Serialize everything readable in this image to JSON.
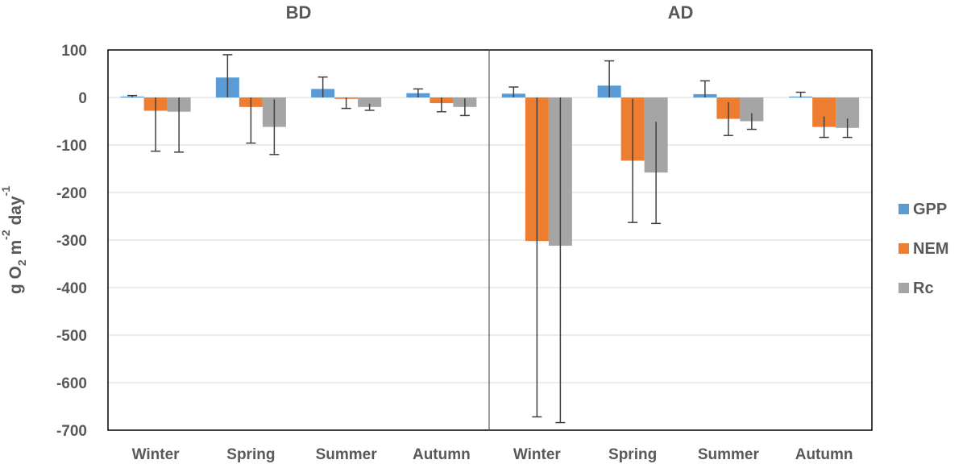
{
  "chart_data": {
    "type": "bar",
    "ylabel_parts": [
      "g O",
      "2",
      " m",
      "-2",
      " day",
      "-1"
    ],
    "ylim": [
      -700,
      100
    ],
    "yticks": [
      100,
      0,
      -100,
      -200,
      -300,
      -400,
      -500,
      -600,
      -700
    ],
    "ytick_labels": [
      "100",
      "0",
      "-100",
      "-200",
      "-300",
      "-400",
      "-500",
      "-600",
      "-700"
    ],
    "grid": true,
    "legend_position": "right",
    "series_names": [
      "GPP",
      "NEM",
      "Rc"
    ],
    "colors": {
      "GPP": "#5b9bd5",
      "NEM": "#ed7d31",
      "Rc": "#a5a5a5",
      "error_bar": "#404040",
      "grid": "#d9d9d9",
      "axis": "#595959"
    },
    "panels": [
      {
        "title": "BD",
        "categories": [
          "Winter",
          "Spring",
          "Summer",
          "Autumn"
        ],
        "series": [
          {
            "name": "GPP",
            "values": [
              2,
              42,
              18,
              9
            ],
            "errors": [
              2,
              48,
              25,
              9
            ]
          },
          {
            "name": "NEM",
            "values": [
              -28,
              -20,
              -3,
              -12
            ],
            "errors": [
              85,
              76,
              20,
              18
            ]
          },
          {
            "name": "Rc",
            "values": [
              -30,
              -62,
              -20,
              -20
            ],
            "errors": [
              85,
              58,
              7,
              18
            ]
          }
        ]
      },
      {
        "title": "AD",
        "categories": [
          "Winter",
          "Spring",
          "Summer",
          "Autumn"
        ],
        "series": [
          {
            "name": "GPP",
            "values": [
              8,
              25,
              7,
              2
            ],
            "errors": [
              14,
              52,
              28,
              9
            ]
          },
          {
            "name": "NEM",
            "values": [
              -302,
              -133,
              -45,
              -62
            ],
            "errors": [
              370,
              130,
              35,
              22
            ]
          },
          {
            "name": "Rc",
            "values": [
              -312,
              -158,
              -50,
              -64
            ],
            "errors": [
              372,
              107,
              17,
              20
            ]
          }
        ]
      }
    ]
  }
}
